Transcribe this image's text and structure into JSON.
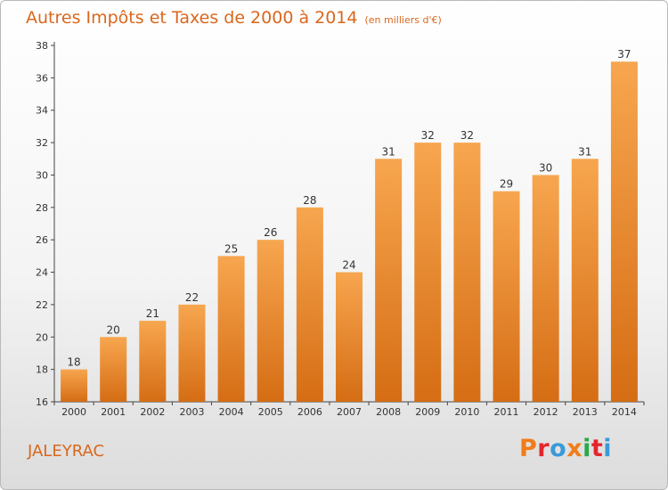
{
  "header": {
    "title": "Autres Impôts et Taxes de 2000 à 2014",
    "unit": "(en milliers d'€)"
  },
  "footer": {
    "commune": "JALEYRAC",
    "logo_text": "Proxiti",
    "logo_colors": [
      "#f07d1a",
      "#e3262d",
      "#3a9ad9",
      "#f07d1a",
      "#2aa84a",
      "#e3262d",
      "#3a9ad9"
    ]
  },
  "colors": {
    "title": "#d9671d",
    "bar_light": "#f7a64f",
    "bar_dark": "#d56d14",
    "axis": "#333333"
  },
  "chart_data": {
    "type": "bar",
    "title": "Autres Impôts et Taxes de 2000 à 2014",
    "subtitle": "(en milliers d'€)",
    "xlabel": "",
    "ylabel": "",
    "categories": [
      "2000",
      "2001",
      "2002",
      "2003",
      "2004",
      "2005",
      "2006",
      "2007",
      "2008",
      "2009",
      "2010",
      "2011",
      "2012",
      "2013",
      "2014"
    ],
    "values": [
      18,
      20,
      21,
      22,
      25,
      26,
      28,
      24,
      31,
      32,
      32,
      29,
      30,
      31,
      37
    ],
    "ylim": [
      16,
      38
    ],
    "yticks": [
      16,
      18,
      20,
      22,
      24,
      26,
      28,
      30,
      32,
      34,
      36,
      38
    ],
    "data_labels": true,
    "grid": false,
    "legend": "none"
  }
}
